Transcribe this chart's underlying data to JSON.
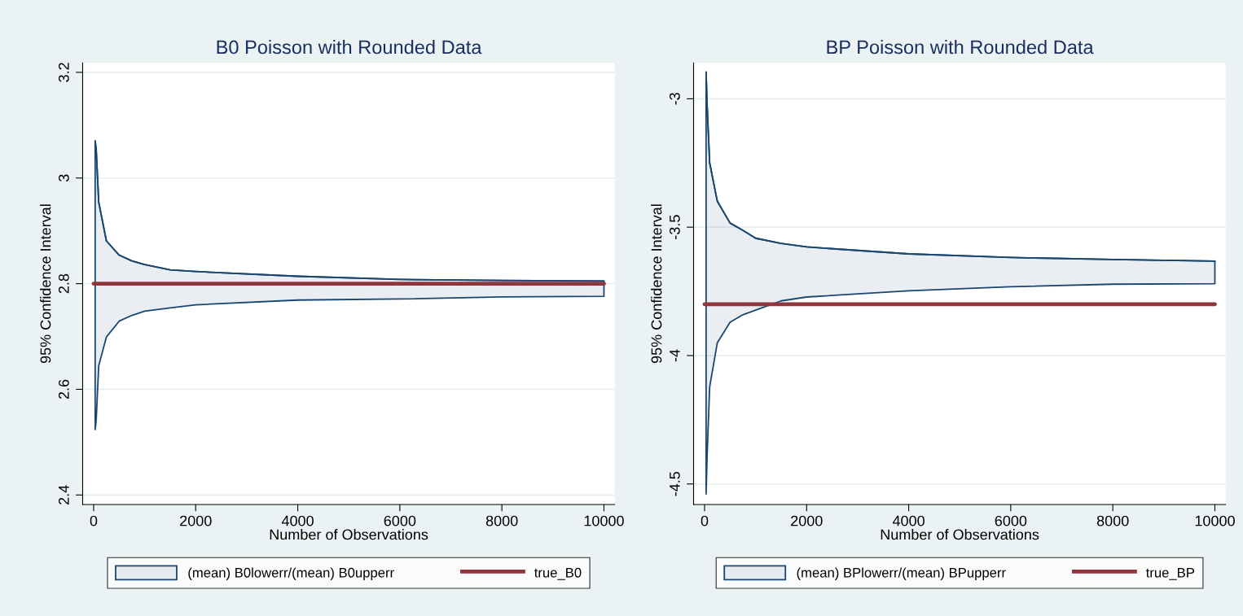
{
  "chart_data": [
    {
      "type": "line",
      "title": "B0 Poisson with Rounded Data",
      "xlabel": "Number of Observations",
      "ylabel": "95% Confidence Interval",
      "xlim": [
        -215,
        10210
      ],
      "xticks": [
        0,
        2000,
        4000,
        6000,
        8000,
        10000
      ],
      "ylim": [
        2.382,
        3.218
      ],
      "yticks": [
        2.4,
        2.6,
        2.8,
        3,
        3.2
      ],
      "grid": "y",
      "legend": "bottom",
      "series": [
        {
          "name": "(mean) B0lowerr/(mean) B0upperr",
          "color": "#1a476f",
          "x": [
            30,
            50,
            100,
            250,
            500,
            750,
            1000,
            1500,
            2000,
            4000,
            6000,
            8000,
            10000
          ],
          "values": [
            3.07,
            3.055,
            2.954,
            2.881,
            2.854,
            2.843,
            2.836,
            2.826,
            2.823,
            2.814,
            2.808,
            2.806,
            2.805
          ],
          "lower": [
            2.524,
            2.541,
            2.645,
            2.699,
            2.729,
            2.74,
            2.748,
            2.754,
            2.76,
            2.769,
            2.771,
            2.775,
            2.776
          ],
          "upper": [
            3.07,
            3.055,
            2.954,
            2.881,
            2.854,
            2.843,
            2.836,
            2.826,
            2.823,
            2.814,
            2.808,
            2.806,
            2.805
          ]
        },
        {
          "type": "line",
          "name": "true_B0",
          "color": "#90353b",
          "x": [
            0,
            10000
          ],
          "values": [
            2.8,
            2.8
          ]
        }
      ]
    },
    {
      "type": "line",
      "title": "BP Poisson with Rounded Data",
      "xlabel": "Number of Observations",
      "ylabel": "95% Confidence Interval",
      "xlim": [
        -215,
        10210
      ],
      "xticks": [
        0,
        2000,
        4000,
        6000,
        8000,
        10000
      ],
      "ylim": [
        -4.58,
        -2.86
      ],
      "yticks": [
        -4.5,
        -4,
        -3.5,
        -3
      ],
      "grid": "y",
      "legend": "bottom",
      "series": [
        {
          "name": "(mean) BPlowerr/(mean) BPupperr",
          "color": "#1a476f",
          "x": [
            30,
            50,
            100,
            250,
            500,
            750,
            1000,
            1500,
            2000,
            4000,
            6000,
            8000,
            10000
          ],
          "values": [
            -2.896,
            -3.024,
            -3.25,
            -3.399,
            -3.484,
            -3.512,
            -3.543,
            -3.563,
            -3.577,
            -3.604,
            -3.618,
            -3.626,
            -3.632
          ],
          "lower": [
            -4.539,
            -4.39,
            -4.122,
            -3.95,
            -3.87,
            -3.841,
            -3.823,
            -3.787,
            -3.772,
            -3.748,
            -3.732,
            -3.722,
            -3.72
          ],
          "upper": [
            -2.896,
            -3.024,
            -3.25,
            -3.399,
            -3.484,
            -3.512,
            -3.543,
            -3.563,
            -3.577,
            -3.604,
            -3.618,
            -3.626,
            -3.632
          ]
        },
        {
          "type": "line",
          "name": "true_BP",
          "color": "#90353b",
          "x": [
            0,
            10000
          ],
          "values": [
            -3.8,
            -3.8
          ]
        }
      ]
    }
  ]
}
